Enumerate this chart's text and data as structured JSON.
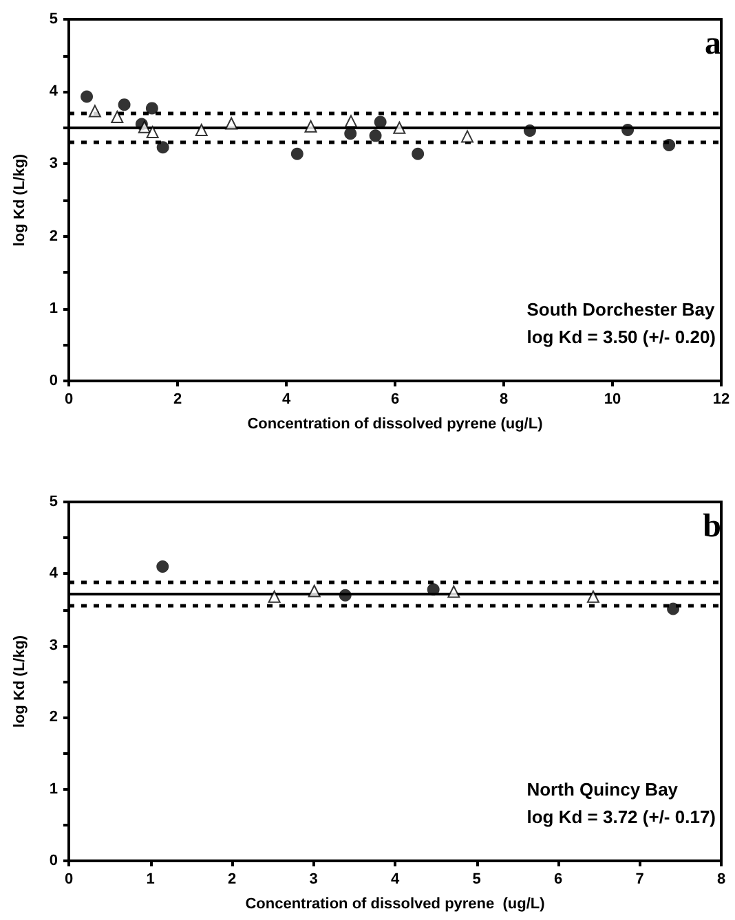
{
  "chart_data": [
    {
      "type": "scatter",
      "xlabel": "Concentration of dissolved pyrene (ug/L)",
      "ylabel": "log Kd (L/kg)",
      "xlim": [
        0,
        12
      ],
      "xticks": [
        0,
        2,
        4,
        6,
        8,
        10,
        12
      ],
      "ylim": [
        0,
        5
      ],
      "yticks": [
        0,
        {
          "value": 0.5,
          "label": null
        },
        1,
        {
          "value": 1.5,
          "label": null
        },
        2,
        {
          "value": 2.5,
          "label": null
        },
        3,
        {
          "value": 3.5,
          "label": null
        },
        4,
        {
          "value": 4.5,
          "label": null
        },
        5
      ],
      "grid": false,
      "annotations": [
        "a",
        "South Dorchester Bay\nlog Kd = 3.50 (+/- 0.20)"
      ],
      "ref_lines": [
        {
          "axis": "y",
          "value": 3.5,
          "label": null,
          "color": "#000000",
          "line_style": "solid"
        },
        {
          "axis": "y",
          "value": 3.7,
          "label": null,
          "color": "#000000",
          "line_style": "dashed"
        },
        {
          "axis": "y",
          "value": 3.3,
          "label": null,
          "color": "#000000",
          "line_style": "dashed"
        }
      ],
      "series": [
        {
          "color": "#000000",
          "marker": "circle",
          "x": [
            0.33,
            1.02,
            1.34,
            1.53,
            1.73,
            4.2,
            5.18,
            5.64,
            5.73,
            6.42,
            8.48,
            10.28,
            11.04
          ],
          "values": [
            3.93,
            3.82,
            3.55,
            3.77,
            3.23,
            3.14,
            3.42,
            3.39,
            3.58,
            3.14,
            3.46,
            3.47,
            3.26
          ]
        },
        {
          "color": "#000000",
          "marker": "triangle",
          "x": [
            0.48,
            0.89,
            1.39,
            1.54,
            2.44,
            2.99,
            4.45,
            5.19,
            6.08,
            7.33
          ],
          "values": [
            3.73,
            3.65,
            3.51,
            3.44,
            3.47,
            3.56,
            3.52,
            3.59,
            3.5,
            3.38
          ]
        }
      ]
    },
    {
      "type": "scatter",
      "xlabel": "Concentration of dissolved pyrene  (ug/L)",
      "ylabel": "log Kd (L/kg)",
      "xlim": [
        0,
        8
      ],
      "xticks": [
        0,
        1,
        2,
        3,
        4,
        5,
        6,
        7,
        8
      ],
      "ylim": [
        0,
        5
      ],
      "yticks": [
        0,
        {
          "value": 0.5,
          "label": null
        },
        1,
        {
          "value": 1.5,
          "label": null
        },
        2,
        {
          "value": 2.5,
          "label": null
        },
        3,
        {
          "value": 3.5,
          "label": null
        },
        4,
        {
          "value": 4.5,
          "label": null
        },
        5
      ],
      "grid": false,
      "annotations": [
        "b",
        "North Quincy Bay\nlog Kd = 3.72 (+/- 0.17)"
      ],
      "ref_lines": [
        {
          "axis": "y",
          "value": 3.72,
          "label": null,
          "color": "#000000",
          "line_style": "solid"
        },
        {
          "axis": "y",
          "value": 3.89,
          "label": null,
          "color": "#000000",
          "line_style": "dashed"
        },
        {
          "axis": "y",
          "value": 3.55,
          "label": null,
          "color": "#000000",
          "line_style": "dashed"
        }
      ],
      "series": [
        {
          "color": "#000000",
          "marker": "circle",
          "x": [
            1.15,
            3.39,
            4.47,
            7.41
          ],
          "values": [
            4.1,
            3.7,
            3.78,
            3.51
          ]
        },
        {
          "color": "#000000",
          "marker": "triangle",
          "x": [
            2.52,
            3.01,
            4.72,
            6.43
          ],
          "values": [
            3.68,
            3.76,
            3.75,
            3.68
          ]
        }
      ]
    }
  ]
}
